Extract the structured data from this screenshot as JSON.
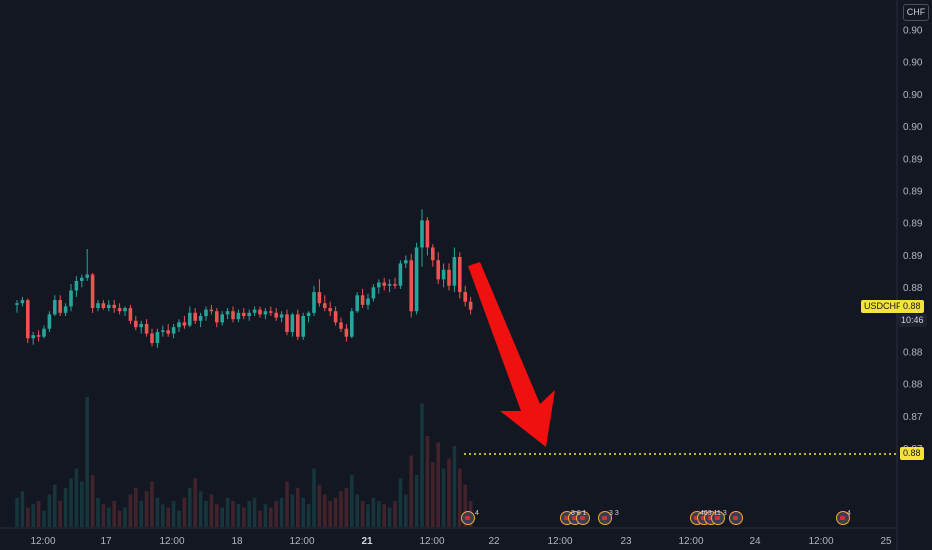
{
  "currency": "CHF",
  "symbol_tag": {
    "label": "USDCHF",
    "price": "0.88",
    "countdown": "10:46"
  },
  "target_line_label": "0.88",
  "colors": {
    "up": "#26a69a",
    "down": "#ef5350",
    "arrow": "#f01010",
    "target": "#ffeb3b",
    "bg": "#131722",
    "text": "#b2b5be"
  },
  "y_ticks": [
    "0.90",
    "0.90",
    "0.90",
    "0.90",
    "0.89",
    "0.89",
    "0.89",
    "0.89",
    "0.88",
    "0.88",
    "0.88",
    "0.88",
    "0.87",
    "0.87"
  ],
  "x_ticks": [
    {
      "label": "12:00",
      "bold": false
    },
    {
      "label": "17",
      "bold": false
    },
    {
      "label": "12:00",
      "bold": false
    },
    {
      "label": "18",
      "bold": false
    },
    {
      "label": "12:00",
      "bold": false
    },
    {
      "label": "21",
      "bold": true
    },
    {
      "label": "12:00",
      "bold": false
    },
    {
      "label": "22",
      "bold": false
    },
    {
      "label": "12:00",
      "bold": false
    },
    {
      "label": "23",
      "bold": false
    },
    {
      "label": "12:00",
      "bold": false
    },
    {
      "label": "24",
      "bold": false
    },
    {
      "label": "12:00",
      "bold": false
    },
    {
      "label": "25",
      "bold": false
    }
  ],
  "events": [
    {
      "count": "4"
    },
    {
      "count": "8 6 1"
    },
    {
      "count": "3 3"
    },
    {
      "count": "403 11 3"
    },
    {
      "count": "4"
    }
  ],
  "chart_data": {
    "type": "candlestick",
    "symbol": "USDCHF",
    "ylim": [
      0.8715,
      0.9035
    ],
    "target_price": 0.8775,
    "candles": [
      [
        0.885,
        0.8853,
        0.8845,
        0.8851
      ],
      [
        0.8851,
        0.8855,
        0.8849,
        0.8853
      ],
      [
        0.8853,
        0.8854,
        0.8826,
        0.8829
      ],
      [
        0.8829,
        0.8833,
        0.8825,
        0.8831
      ],
      [
        0.8831,
        0.8834,
        0.8827,
        0.883
      ],
      [
        0.883,
        0.8837,
        0.8829,
        0.8835
      ],
      [
        0.8835,
        0.8846,
        0.8833,
        0.8844
      ],
      [
        0.8844,
        0.8856,
        0.8843,
        0.8853
      ],
      [
        0.8853,
        0.8856,
        0.8843,
        0.8845
      ],
      [
        0.8845,
        0.8851,
        0.8843,
        0.8849
      ],
      [
        0.8849,
        0.8863,
        0.8846,
        0.8859
      ],
      [
        0.8859,
        0.8868,
        0.8855,
        0.8865
      ],
      [
        0.8865,
        0.8869,
        0.8861,
        0.8867
      ],
      [
        0.8867,
        0.8885,
        0.8865,
        0.8869
      ],
      [
        0.8869,
        0.887,
        0.8845,
        0.8848
      ],
      [
        0.8848,
        0.8853,
        0.8846,
        0.8851
      ],
      [
        0.8851,
        0.8853,
        0.8847,
        0.8848
      ],
      [
        0.8848,
        0.8853,
        0.8846,
        0.885
      ],
      [
        0.885,
        0.8853,
        0.8845,
        0.8848
      ],
      [
        0.8848,
        0.8851,
        0.8844,
        0.8846
      ],
      [
        0.8846,
        0.8849,
        0.8843,
        0.8848
      ],
      [
        0.8848,
        0.885,
        0.8838,
        0.884
      ],
      [
        0.884,
        0.8843,
        0.8834,
        0.8836
      ],
      [
        0.8836,
        0.884,
        0.8832,
        0.8838
      ],
      [
        0.8838,
        0.8841,
        0.883,
        0.8832
      ],
      [
        0.8832,
        0.8835,
        0.8824,
        0.8826
      ],
      [
        0.8826,
        0.8835,
        0.8823,
        0.8833
      ],
      [
        0.8833,
        0.8837,
        0.883,
        0.8834
      ],
      [
        0.8834,
        0.8838,
        0.883,
        0.8832
      ],
      [
        0.8832,
        0.8838,
        0.8829,
        0.8836
      ],
      [
        0.8836,
        0.8841,
        0.8833,
        0.8839
      ],
      [
        0.8839,
        0.8843,
        0.8835,
        0.8837
      ],
      [
        0.8837,
        0.8849,
        0.8836,
        0.8845
      ],
      [
        0.8845,
        0.8848,
        0.8838,
        0.884
      ],
      [
        0.884,
        0.8845,
        0.8836,
        0.8843
      ],
      [
        0.8843,
        0.8849,
        0.884,
        0.8847
      ],
      [
        0.8847,
        0.885,
        0.8844,
        0.8846
      ],
      [
        0.8846,
        0.8848,
        0.8836,
        0.8839
      ],
      [
        0.8839,
        0.8846,
        0.8837,
        0.8844
      ],
      [
        0.8844,
        0.8848,
        0.8841,
        0.8846
      ],
      [
        0.8846,
        0.8849,
        0.8839,
        0.8841
      ],
      [
        0.8841,
        0.8847,
        0.8839,
        0.8845
      ],
      [
        0.8845,
        0.8848,
        0.8841,
        0.8843
      ],
      [
        0.8843,
        0.8847,
        0.884,
        0.8845
      ],
      [
        0.8845,
        0.8849,
        0.8843,
        0.8847
      ],
      [
        0.8847,
        0.8849,
        0.8842,
        0.8844
      ],
      [
        0.8844,
        0.8848,
        0.8841,
        0.8846
      ],
      [
        0.8846,
        0.8849,
        0.8843,
        0.8845
      ],
      [
        0.8845,
        0.8848,
        0.884,
        0.8842
      ],
      [
        0.8842,
        0.8846,
        0.8839,
        0.8844
      ],
      [
        0.8844,
        0.8847,
        0.8831,
        0.8833
      ],
      [
        0.8833,
        0.8845,
        0.883,
        0.8844
      ],
      [
        0.8844,
        0.8847,
        0.8828,
        0.883
      ],
      [
        0.883,
        0.8845,
        0.8828,
        0.8843
      ],
      [
        0.8843,
        0.8846,
        0.8839,
        0.8845
      ],
      [
        0.8845,
        0.8862,
        0.8843,
        0.8858
      ],
      [
        0.8858,
        0.8866,
        0.8849,
        0.8851
      ],
      [
        0.8851,
        0.8856,
        0.8846,
        0.8848
      ],
      [
        0.8848,
        0.8852,
        0.8843,
        0.8846
      ],
      [
        0.8846,
        0.8849,
        0.8837,
        0.8839
      ],
      [
        0.8839,
        0.8842,
        0.8833,
        0.8835
      ],
      [
        0.8835,
        0.8838,
        0.8827,
        0.883
      ],
      [
        0.883,
        0.8848,
        0.8829,
        0.8846
      ],
      [
        0.8846,
        0.8858,
        0.8845,
        0.8856
      ],
      [
        0.8856,
        0.886,
        0.8848,
        0.885
      ],
      [
        0.885,
        0.8857,
        0.8847,
        0.8854
      ],
      [
        0.8854,
        0.8863,
        0.8852,
        0.8861
      ],
      [
        0.8861,
        0.8866,
        0.8857,
        0.8864
      ],
      [
        0.8864,
        0.8867,
        0.8859,
        0.8862
      ],
      [
        0.8862,
        0.8866,
        0.8858,
        0.8863
      ],
      [
        0.8863,
        0.8867,
        0.886,
        0.8862
      ],
      [
        0.8862,
        0.8878,
        0.886,
        0.8876
      ],
      [
        0.8876,
        0.8881,
        0.8873,
        0.8878
      ],
      [
        0.8878,
        0.8882,
        0.8842,
        0.8846
      ],
      [
        0.8846,
        0.8889,
        0.8844,
        0.8886
      ],
      [
        0.8886,
        0.891,
        0.8874,
        0.8903
      ],
      [
        0.8903,
        0.8905,
        0.8881,
        0.8886
      ],
      [
        0.8886,
        0.8888,
        0.8874,
        0.8878
      ],
      [
        0.8878,
        0.8883,
        0.8863,
        0.8866
      ],
      [
        0.8866,
        0.8876,
        0.8861,
        0.8872
      ],
      [
        0.8872,
        0.8876,
        0.8859,
        0.8862
      ],
      [
        0.8862,
        0.8886,
        0.8858,
        0.888
      ],
      [
        0.888,
        0.8883,
        0.8854,
        0.8858
      ],
      [
        0.8858,
        0.8862,
        0.8849,
        0.8852
      ],
      [
        0.8852,
        0.8855,
        0.8844,
        0.8847
      ]
    ],
    "volumes": [
      9,
      11,
      6,
      7,
      8,
      5,
      10,
      13,
      8,
      12,
      15,
      18,
      14,
      40,
      16,
      9,
      7,
      6,
      8,
      5,
      6,
      10,
      12,
      8,
      11,
      14,
      9,
      7,
      6,
      8,
      5,
      9,
      12,
      15,
      11,
      8,
      10,
      7,
      6,
      9,
      8,
      7,
      6,
      8,
      9,
      5,
      7,
      6,
      8,
      9,
      14,
      10,
      12,
      9,
      7,
      18,
      13,
      10,
      8,
      9,
      11,
      12,
      16,
      10,
      8,
      7,
      9,
      8,
      7,
      6,
      8,
      15,
      10,
      22,
      16,
      38,
      28,
      20,
      26,
      18,
      21,
      25,
      18,
      13,
      8
    ]
  }
}
